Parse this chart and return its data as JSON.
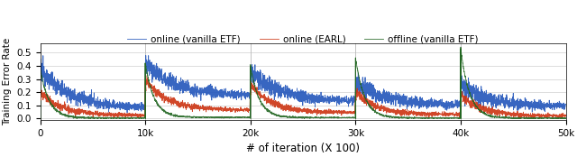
{
  "xlabel": "# of iteration (X 100)",
  "ylabel": "Training Error Rate",
  "xlim": [
    0,
    50000
  ],
  "ylim": [
    -0.01,
    0.57
  ],
  "yticks": [
    0.0,
    0.1,
    0.2,
    0.3,
    0.4,
    0.5
  ],
  "xticks": [
    0,
    10000,
    20000,
    30000,
    40000,
    50000
  ],
  "xticklabels": [
    "0",
    "10k",
    "20k",
    "30k",
    "40k",
    "50k"
  ],
  "color_blue": "#2255bb",
  "color_red": "#cc3311",
  "color_green": "#226622",
  "legend_labels": [
    "online (vanilla ETF)",
    "online (EARL)",
    "offline (vanilla ETF)"
  ],
  "figsize": [
    6.4,
    1.74
  ],
  "dpi": 100,
  "segment_starts": [
    0,
    10000,
    20000,
    30000,
    40000
  ],
  "blue_init": [
    0.38,
    0.42,
    0.35,
    0.27,
    0.25
  ],
  "blue_final": [
    0.075,
    0.17,
    0.13,
    0.1,
    0.09
  ],
  "blue_noise": 0.022,
  "blue_decay": 3.5,
  "red_init": [
    0.2,
    0.3,
    0.26,
    0.2,
    0.18
  ],
  "red_final": [
    0.025,
    0.065,
    0.045,
    0.03,
    0.02
  ],
  "red_noise": 0.01,
  "red_decay": 5.0,
  "green_spike": [
    0.38,
    0.42,
    0.4,
    0.46,
    0.53
  ],
  "green_final": [
    0.005,
    0.01,
    0.008,
    0.005,
    0.004
  ],
  "green_noise": 0.003,
  "green_decay": 12.0
}
